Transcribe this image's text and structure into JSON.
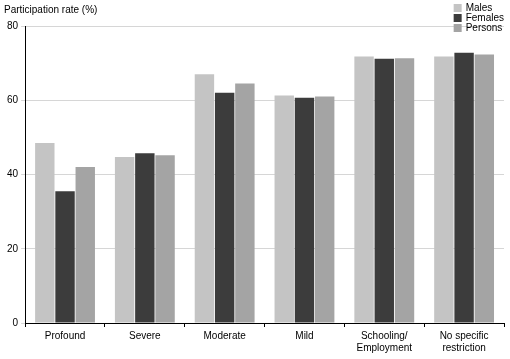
{
  "chart_data": {
    "type": "bar",
    "y_label": "Participation rate (%)",
    "categories": [
      "Profound",
      "Severe",
      "Moderate",
      "Mild",
      "Schooling/ Employment",
      "No specific restriction"
    ],
    "series": [
      {
        "name": "Males",
        "color": "#c4c4c4",
        "values": [
          48.5,
          44.7,
          67,
          61.3,
          71.8,
          71.8
        ]
      },
      {
        "name": "Females",
        "color": "#3c3c3c",
        "values": [
          35.5,
          45.7,
          62,
          60.7,
          71.2,
          72.8
        ]
      },
      {
        "name": "Persons",
        "color": "#a4a4a4",
        "values": [
          42,
          45.2,
          64.5,
          61,
          71.3,
          72.3
        ]
      }
    ],
    "ylim": [
      0,
      80
    ],
    "yticks": [
      0,
      20,
      40,
      60,
      80
    ],
    "grid": true,
    "legend": "top-right"
  }
}
